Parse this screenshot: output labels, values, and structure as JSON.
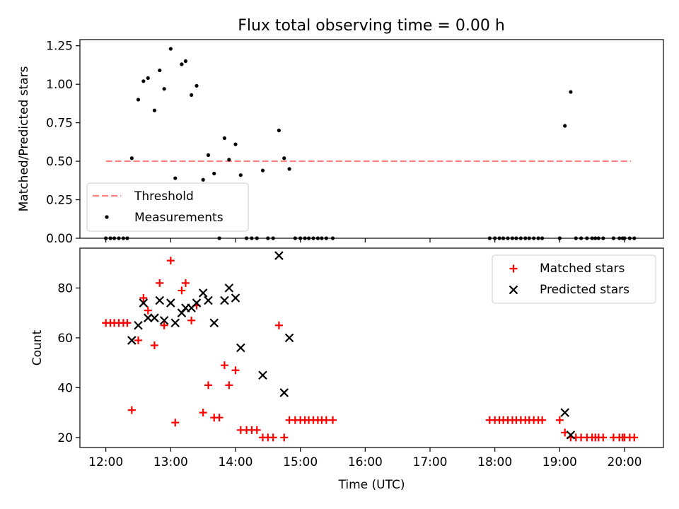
{
  "figure": {
    "title": "Flux total observing time = 0.00 h"
  },
  "chart_data": [
    {
      "type": "scatter",
      "panel": "top",
      "title": "Flux total observing time = 0.00 h",
      "xlabel": "",
      "ylabel": "Matched/Predicted stars",
      "xlim": [
        11.6,
        20.6
      ],
      "ylim": [
        0.0,
        1.29
      ],
      "x_tick_values": [
        12,
        13,
        14,
        15,
        16,
        17,
        18,
        19,
        20
      ],
      "y_ticks": [
        0.0,
        0.25,
        0.5,
        0.75,
        1.0,
        1.25
      ],
      "y_tick_labels": [
        "0.00",
        "0.25",
        "0.50",
        "0.75",
        "1.00",
        "1.25"
      ],
      "grid": false,
      "legend": {
        "placement": "lower-left",
        "entries": [
          "Threshold",
          "Measurements"
        ]
      },
      "threshold": {
        "name": "Threshold",
        "color": "#ff7f7f",
        "style": "dashed",
        "x": [
          12.0,
          20.1
        ],
        "y": 0.5
      },
      "series": [
        {
          "name": "Measurements",
          "marker": "dot",
          "color": "#000000",
          "points": [
            [
              12.0,
              0.0
            ],
            [
              12.07,
              0.0
            ],
            [
              12.13,
              0.0
            ],
            [
              12.2,
              0.0
            ],
            [
              12.27,
              0.0
            ],
            [
              12.33,
              0.0
            ],
            [
              12.4,
              0.52
            ],
            [
              12.5,
              0.9
            ],
            [
              12.58,
              1.02
            ],
            [
              12.65,
              1.04
            ],
            [
              12.75,
              0.83
            ],
            [
              12.83,
              1.09
            ],
            [
              12.9,
              0.97
            ],
            [
              13.0,
              1.23
            ],
            [
              13.07,
              0.39
            ],
            [
              13.17,
              1.13
            ],
            [
              13.23,
              1.15
            ],
            [
              13.32,
              0.93
            ],
            [
              13.4,
              0.99
            ],
            [
              13.5,
              0.38
            ],
            [
              13.58,
              0.54
            ],
            [
              13.67,
              0.42
            ],
            [
              13.75,
              0.0
            ],
            [
              13.83,
              0.65
            ],
            [
              13.9,
              0.51
            ],
            [
              14.0,
              0.61
            ],
            [
              14.08,
              0.41
            ],
            [
              14.17,
              0.0
            ],
            [
              14.25,
              0.0
            ],
            [
              14.33,
              0.0
            ],
            [
              14.42,
              0.44
            ],
            [
              14.5,
              0.0
            ],
            [
              14.58,
              0.0
            ],
            [
              14.67,
              0.7
            ],
            [
              14.75,
              0.52
            ],
            [
              14.83,
              0.45
            ],
            [
              14.92,
              0.0
            ],
            [
              15.0,
              0.0
            ],
            [
              15.07,
              0.0
            ],
            [
              15.13,
              0.0
            ],
            [
              15.2,
              0.0
            ],
            [
              15.27,
              0.0
            ],
            [
              15.33,
              0.0
            ],
            [
              15.4,
              0.0
            ],
            [
              15.5,
              0.0
            ],
            [
              17.92,
              0.0
            ],
            [
              18.0,
              0.0
            ],
            [
              18.07,
              0.0
            ],
            [
              18.13,
              0.0
            ],
            [
              18.2,
              0.0
            ],
            [
              18.27,
              0.0
            ],
            [
              18.33,
              0.0
            ],
            [
              18.4,
              0.0
            ],
            [
              18.47,
              0.0
            ],
            [
              18.53,
              0.0
            ],
            [
              18.6,
              0.0
            ],
            [
              18.67,
              0.0
            ],
            [
              18.73,
              0.0
            ],
            [
              19.0,
              0.0
            ],
            [
              19.08,
              0.73
            ],
            [
              19.17,
              0.95
            ],
            [
              19.25,
              0.0
            ],
            [
              19.33,
              0.0
            ],
            [
              19.42,
              0.0
            ],
            [
              19.5,
              0.0
            ],
            [
              19.55,
              0.0
            ],
            [
              19.6,
              0.0
            ],
            [
              19.67,
              0.0
            ],
            [
              19.83,
              0.0
            ],
            [
              19.92,
              0.0
            ],
            [
              19.97,
              0.0
            ],
            [
              20.0,
              0.0
            ],
            [
              20.08,
              0.0
            ],
            [
              20.15,
              0.0
            ]
          ]
        }
      ]
    },
    {
      "type": "scatter",
      "panel": "bottom",
      "xlabel": "Time (UTC)",
      "ylabel": "Count",
      "xlim": [
        11.6,
        20.6
      ],
      "ylim": [
        16,
        96
      ],
      "x_tick_values": [
        12,
        13,
        14,
        15,
        16,
        17,
        18,
        19,
        20
      ],
      "x_tick_labels": [
        "12:00",
        "13:00",
        "14:00",
        "15:00",
        "16:00",
        "17:00",
        "18:00",
        "19:00",
        "20:00"
      ],
      "y_ticks": [
        20,
        40,
        60,
        80
      ],
      "y_tick_labels": [
        "20",
        "40",
        "60",
        "80"
      ],
      "grid": false,
      "legend": {
        "placement": "upper-right",
        "entries": [
          "Matched stars",
          "Predicted stars"
        ]
      },
      "series": [
        {
          "name": "Matched stars",
          "marker": "plus",
          "color": "#ff0000",
          "points": [
            [
              12.0,
              66
            ],
            [
              12.07,
              66
            ],
            [
              12.13,
              66
            ],
            [
              12.2,
              66
            ],
            [
              12.27,
              66
            ],
            [
              12.33,
              66
            ],
            [
              12.4,
              31
            ],
            [
              12.5,
              59
            ],
            [
              12.58,
              76
            ],
            [
              12.65,
              71
            ],
            [
              12.75,
              57
            ],
            [
              12.83,
              82
            ],
            [
              12.9,
              65
            ],
            [
              13.0,
              91
            ],
            [
              13.07,
              26
            ],
            [
              13.17,
              79
            ],
            [
              13.23,
              82
            ],
            [
              13.32,
              67
            ],
            [
              13.4,
              73
            ],
            [
              13.5,
              30
            ],
            [
              13.58,
              41
            ],
            [
              13.67,
              28
            ],
            [
              13.75,
              28
            ],
            [
              13.83,
              49
            ],
            [
              13.9,
              41
            ],
            [
              14.0,
              47
            ],
            [
              14.08,
              23
            ],
            [
              14.17,
              23
            ],
            [
              14.25,
              23
            ],
            [
              14.33,
              23
            ],
            [
              14.42,
              20
            ],
            [
              14.5,
              20
            ],
            [
              14.58,
              20
            ],
            [
              14.67,
              65
            ],
            [
              14.75,
              20
            ],
            [
              14.83,
              27
            ],
            [
              14.92,
              27
            ],
            [
              15.0,
              27
            ],
            [
              15.07,
              27
            ],
            [
              15.13,
              27
            ],
            [
              15.2,
              27
            ],
            [
              15.27,
              27
            ],
            [
              15.33,
              27
            ],
            [
              15.4,
              27
            ],
            [
              15.5,
              27
            ],
            [
              17.92,
              27
            ],
            [
              18.0,
              27
            ],
            [
              18.07,
              27
            ],
            [
              18.13,
              27
            ],
            [
              18.2,
              27
            ],
            [
              18.27,
              27
            ],
            [
              18.33,
              27
            ],
            [
              18.4,
              27
            ],
            [
              18.47,
              27
            ],
            [
              18.53,
              27
            ],
            [
              18.6,
              27
            ],
            [
              18.67,
              27
            ],
            [
              18.73,
              27
            ],
            [
              19.0,
              27
            ],
            [
              19.08,
              22
            ],
            [
              19.17,
              20
            ],
            [
              19.25,
              20
            ],
            [
              19.33,
              20
            ],
            [
              19.42,
              20
            ],
            [
              19.5,
              20
            ],
            [
              19.55,
              20
            ],
            [
              19.6,
              20
            ],
            [
              19.67,
              20
            ],
            [
              19.83,
              20
            ],
            [
              19.92,
              20
            ],
            [
              19.97,
              20
            ],
            [
              20.0,
              20
            ],
            [
              20.08,
              20
            ],
            [
              20.15,
              20
            ]
          ]
        },
        {
          "name": "Predicted stars",
          "marker": "x",
          "color": "#000000",
          "points": [
            [
              12.4,
              59
            ],
            [
              12.5,
              65
            ],
            [
              12.58,
              74
            ],
            [
              12.65,
              68
            ],
            [
              12.75,
              68
            ],
            [
              12.83,
              75
            ],
            [
              12.9,
              67
            ],
            [
              13.0,
              74
            ],
            [
              13.07,
              66
            ],
            [
              13.17,
              70
            ],
            [
              13.23,
              72
            ],
            [
              13.32,
              72
            ],
            [
              13.4,
              74
            ],
            [
              13.5,
              78
            ],
            [
              13.58,
              75
            ],
            [
              13.67,
              66
            ],
            [
              13.83,
              75
            ],
            [
              13.9,
              80
            ],
            [
              14.0,
              76
            ],
            [
              14.08,
              56
            ],
            [
              14.42,
              45
            ],
            [
              14.67,
              93
            ],
            [
              14.75,
              38
            ],
            [
              14.83,
              60
            ],
            [
              19.08,
              30
            ],
            [
              19.17,
              21
            ]
          ]
        }
      ]
    }
  ]
}
